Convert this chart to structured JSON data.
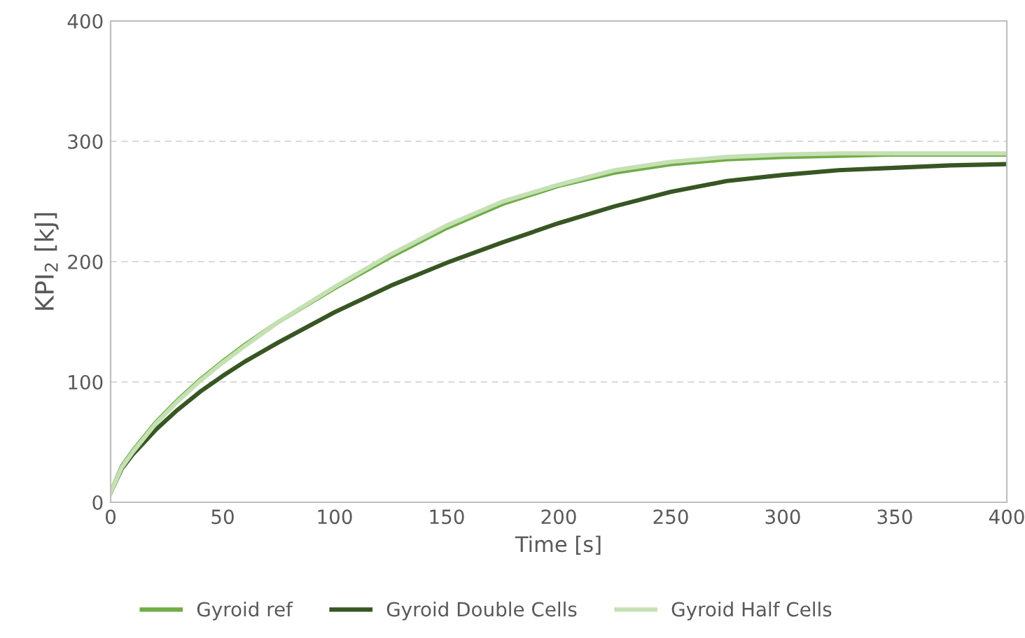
{
  "chart_data": {
    "type": "line",
    "xlabel": "Time [s]",
    "ylabel": "KPI$_{2}$ [kJ]",
    "xlim": [
      0,
      400
    ],
    "xticks": [
      0,
      50,
      100,
      150,
      200,
      250,
      300,
      350,
      400
    ],
    "ylim": [
      0,
      400
    ],
    "yticks": [
      0,
      100,
      200,
      300,
      400
    ],
    "grid": "y",
    "legend": "bottom",
    "marker": "none",
    "line_style": "solid",
    "series": [
      {
        "name": "Gyroid ref",
        "color": "#70ad47",
        "x": [
          0,
          5,
          10,
          20,
          30,
          40,
          50,
          60,
          75,
          100,
          125,
          150,
          175,
          200,
          225,
          250,
          275,
          300,
          325,
          350,
          375,
          400
        ],
        "values": [
          8,
          30,
          43,
          66,
          85,
          102,
          117,
          131,
          150,
          178,
          204,
          228,
          248,
          263,
          274,
          281,
          285,
          287,
          288,
          289,
          289,
          289
        ]
      },
      {
        "name": "Gyroid Double Cells",
        "color": "#375623",
        "x": [
          0,
          5,
          10,
          20,
          30,
          40,
          50,
          60,
          75,
          100,
          125,
          150,
          175,
          200,
          225,
          250,
          275,
          300,
          325,
          350,
          375,
          400
        ],
        "values": [
          8,
          28,
          40,
          60,
          77,
          92,
          105,
          117,
          133,
          158,
          180,
          199,
          216,
          232,
          246,
          258,
          267,
          272,
          276,
          278,
          280,
          281
        ]
      },
      {
        "name": "Gyroid Half Cells",
        "color": "#c5e0b4",
        "x": [
          0,
          5,
          10,
          20,
          30,
          40,
          50,
          60,
          75,
          100,
          125,
          150,
          175,
          200,
          225,
          250,
          275,
          300,
          325,
          350,
          375,
          400
        ],
        "values": [
          8,
          29,
          42,
          65,
          84,
          101,
          116,
          130,
          150,
          179,
          206,
          230,
          250,
          264,
          276,
          283,
          287,
          289,
          290,
          290,
          290,
          290
        ]
      }
    ]
  }
}
